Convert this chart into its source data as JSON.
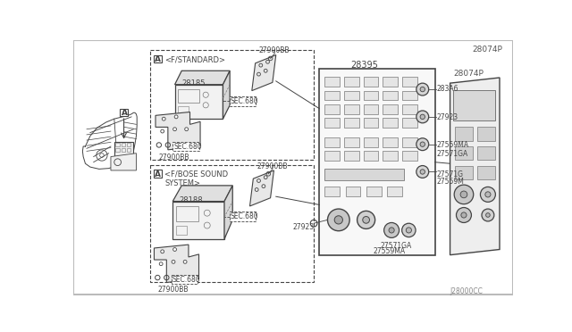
{
  "bg_color": "#ffffff",
  "lc": "#444444",
  "mg": "#777777",
  "fig_width": 6.4,
  "fig_height": 3.72,
  "dpi": 100,
  "labels": {
    "part_top_right": "28074P",
    "part_bottom_right": "J28000CC",
    "standard_label": "<F/STANDARD>",
    "bose_label": "<F/BOSE SOUND\nSYSTEM>",
    "28185": "28185",
    "28188": "28188",
    "28395": "28395",
    "27900BB": "27900BB",
    "SEC680": "SEC.680",
    "283A6": "283A6",
    "27923": "27923",
    "27559MA": "27559MA",
    "27571GA": "27571GA",
    "27571G": "27571G",
    "27559M": "27559M",
    "27571GA2": "27571GA",
    "27559MA2": "27559MA"
  }
}
